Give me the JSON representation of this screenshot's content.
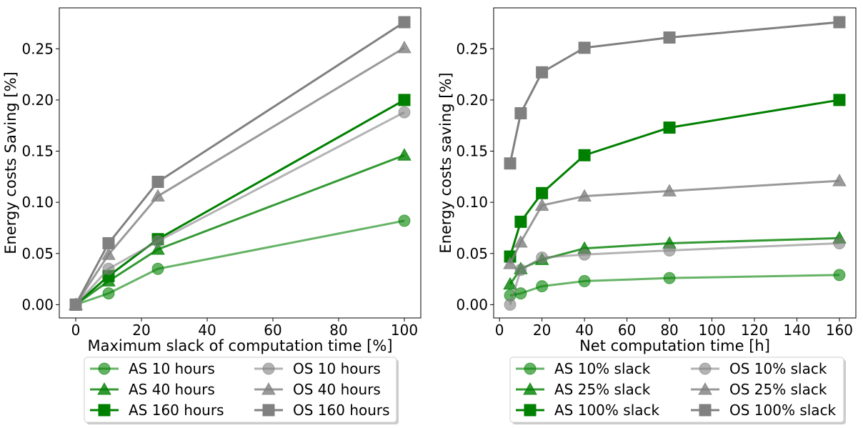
{
  "chart_data": [
    {
      "type": "line",
      "xlabel": "Maximum slack of computation time [%]",
      "ylabel": "Energy costs Saving [%]",
      "xlim": [
        -5,
        105
      ],
      "ylim": [
        -0.013,
        0.29
      ],
      "xticks": [
        "0",
        "20",
        "40",
        "60",
        "80",
        "100"
      ],
      "yticks": [
        "0.00",
        "0.05",
        "0.10",
        "0.15",
        "0.20",
        "0.25"
      ],
      "legend_placement": "below",
      "series": [
        {
          "name": "AS 10 hours",
          "color": "#008000",
          "alpha": 0.6,
          "marker": "circle",
          "x": [
            0,
            10,
            25,
            100
          ],
          "values": [
            0.0,
            0.011,
            0.035,
            0.082
          ]
        },
        {
          "name": "AS 40 hours",
          "color": "#008000",
          "alpha": 0.8,
          "marker": "triangle",
          "x": [
            0,
            10,
            25,
            100
          ],
          "values": [
            0.0,
            0.023,
            0.054,
            0.146
          ]
        },
        {
          "name": "AS 160 hours",
          "color": "#008000",
          "alpha": 1.0,
          "marker": "square",
          "x": [
            0,
            10,
            25,
            100
          ],
          "values": [
            0.0,
            0.028,
            0.064,
            0.2
          ]
        },
        {
          "name": "OS 10 hours",
          "color": "#808080",
          "alpha": 0.6,
          "marker": "circle",
          "x": [
            0,
            10,
            25,
            100
          ],
          "values": [
            0.0,
            0.035,
            0.062,
            0.188
          ]
        },
        {
          "name": "OS 40 hours",
          "color": "#808080",
          "alpha": 0.8,
          "marker": "triangle",
          "x": [
            0,
            10,
            25,
            100
          ],
          "values": [
            0.0,
            0.049,
            0.106,
            0.251
          ]
        },
        {
          "name": "OS 160 hours",
          "color": "#808080",
          "alpha": 1.0,
          "marker": "square",
          "x": [
            0,
            10,
            25,
            100
          ],
          "values": [
            0.0,
            0.06,
            0.12,
            0.276
          ]
        }
      ]
    },
    {
      "type": "line",
      "xlabel": "Net computation time [h]",
      "ylabel": "Energy costs saving [%]",
      "xlim": [
        -2.75,
        167.75
      ],
      "ylim": [
        -0.013,
        0.29
      ],
      "xticks": [
        "0",
        "20",
        "40",
        "60",
        "80",
        "100",
        "120",
        "140",
        "160"
      ],
      "yticks": [
        "0.00",
        "0.05",
        "0.10",
        "0.15",
        "0.20",
        "0.25"
      ],
      "legend_placement": "below",
      "series": [
        {
          "name": "AS 10% slack",
          "color": "#008000",
          "alpha": 0.6,
          "marker": "circle",
          "x": [
            5,
            10,
            20,
            40,
            80,
            160
          ],
          "values": [
            0.009,
            0.011,
            0.018,
            0.023,
            0.026,
            0.029
          ]
        },
        {
          "name": "AS 25% slack",
          "color": "#008000",
          "alpha": 0.8,
          "marker": "triangle",
          "x": [
            5,
            10,
            20,
            40,
            80,
            160
          ],
          "values": [
            0.02,
            0.035,
            0.044,
            0.055,
            0.06,
            0.065
          ]
        },
        {
          "name": "AS 100% slack",
          "color": "#008000",
          "alpha": 1.0,
          "marker": "square",
          "x": [
            5,
            10,
            20,
            40,
            80,
            160
          ],
          "values": [
            0.047,
            0.081,
            0.109,
            0.146,
            0.173,
            0.2
          ]
        },
        {
          "name": "OS 10% slack",
          "color": "#808080",
          "alpha": 0.6,
          "marker": "circle",
          "x": [
            5,
            10,
            20,
            40,
            80,
            160
          ],
          "values": [
            0.0,
            0.034,
            0.046,
            0.049,
            0.053,
            0.06
          ]
        },
        {
          "name": "OS 25% slack",
          "color": "#808080",
          "alpha": 0.8,
          "marker": "triangle",
          "x": [
            5,
            10,
            20,
            40,
            80,
            160
          ],
          "values": [
            0.04,
            0.061,
            0.097,
            0.106,
            0.111,
            0.121
          ]
        },
        {
          "name": "OS 100% slack",
          "color": "#808080",
          "alpha": 1.0,
          "marker": "square",
          "x": [
            5,
            10,
            20,
            40,
            80,
            160
          ],
          "values": [
            0.138,
            0.187,
            0.227,
            0.251,
            0.261,
            0.276
          ]
        }
      ]
    }
  ]
}
